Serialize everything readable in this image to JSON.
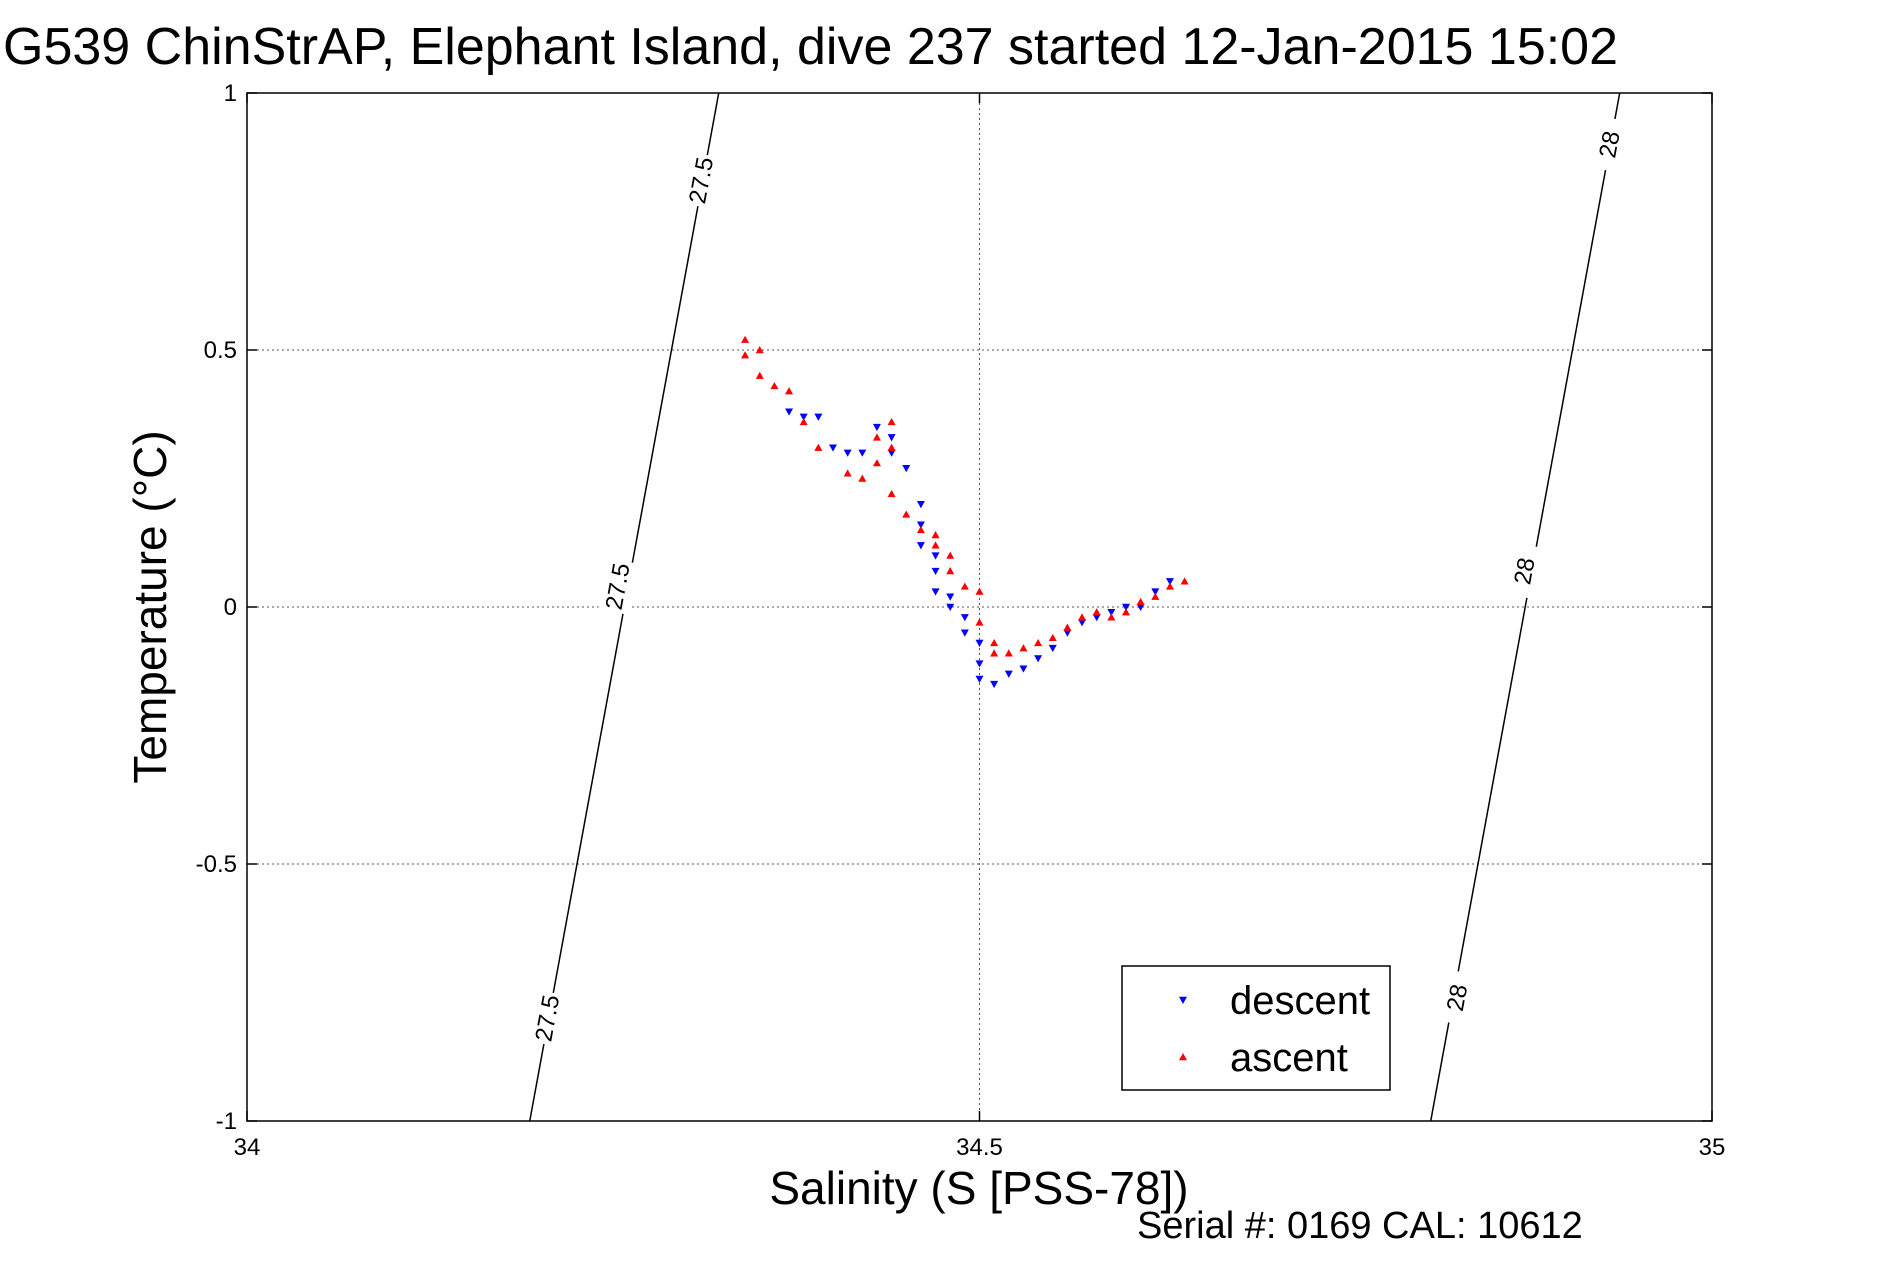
{
  "title": "G539 ChinStrAP, Elephant Island, dive 237 started 12-Jan-2015 15:02",
  "serial": "Serial #: 0169 CAL: 10612",
  "chart_data": {
    "type": "scatter",
    "title": "G539 ChinStrAP, Elephant Island, dive 237 started 12-Jan-2015 15:02",
    "xlabel": "Salinity (S [PSS-78])",
    "ylabel": "Temperature (°C)",
    "xlim": [
      34,
      35
    ],
    "ylim": [
      -1,
      1
    ],
    "xticks": [
      34,
      34.5,
      35
    ],
    "xtick_labels": [
      "34",
      "34.5",
      "35"
    ],
    "yticks": [
      -1,
      -0.5,
      0,
      0.5,
      1
    ],
    "ytick_labels": [
      "-1",
      "-0.5",
      "0",
      "0.5",
      "1"
    ],
    "grid": true,
    "legend": {
      "position": "bottom-right",
      "entries": [
        "descent",
        "ascent"
      ]
    },
    "colors": {
      "descent": "#0000ff",
      "ascent": "#ff0000"
    },
    "series": [
      {
        "name": "descent",
        "marker": "triangle-down",
        "points": [
          [
            34.37,
            0.38
          ],
          [
            34.38,
            0.37
          ],
          [
            34.39,
            0.37
          ],
          [
            34.4,
            0.31
          ],
          [
            34.41,
            0.3
          ],
          [
            34.42,
            0.3
          ],
          [
            34.43,
            0.35
          ],
          [
            34.44,
            0.33
          ],
          [
            34.44,
            0.3
          ],
          [
            34.45,
            0.27
          ],
          [
            34.46,
            0.2
          ],
          [
            34.46,
            0.16
          ],
          [
            34.46,
            0.12
          ],
          [
            34.47,
            0.1
          ],
          [
            34.47,
            0.07
          ],
          [
            34.47,
            0.03
          ],
          [
            34.48,
            0.02
          ],
          [
            34.48,
            0.0
          ],
          [
            34.49,
            -0.02
          ],
          [
            34.49,
            -0.05
          ],
          [
            34.5,
            -0.07
          ],
          [
            34.5,
            -0.11
          ],
          [
            34.5,
            -0.14
          ],
          [
            34.51,
            -0.15
          ],
          [
            34.52,
            -0.13
          ],
          [
            34.53,
            -0.12
          ],
          [
            34.54,
            -0.1
          ],
          [
            34.55,
            -0.08
          ],
          [
            34.56,
            -0.05
          ],
          [
            34.57,
            -0.03
          ],
          [
            34.58,
            -0.02
          ],
          [
            34.59,
            -0.01
          ],
          [
            34.6,
            0.0
          ],
          [
            34.61,
            0.0
          ],
          [
            34.62,
            0.03
          ],
          [
            34.63,
            0.05
          ]
        ]
      },
      {
        "name": "ascent",
        "marker": "triangle-up",
        "points": [
          [
            34.34,
            0.52
          ],
          [
            34.34,
            0.49
          ],
          [
            34.35,
            0.5
          ],
          [
            34.35,
            0.45
          ],
          [
            34.36,
            0.43
          ],
          [
            34.37,
            0.42
          ],
          [
            34.38,
            0.36
          ],
          [
            34.39,
            0.31
          ],
          [
            34.41,
            0.26
          ],
          [
            34.42,
            0.25
          ],
          [
            34.43,
            0.28
          ],
          [
            34.43,
            0.33
          ],
          [
            34.44,
            0.36
          ],
          [
            34.44,
            0.31
          ],
          [
            34.44,
            0.22
          ],
          [
            34.45,
            0.18
          ],
          [
            34.46,
            0.15
          ],
          [
            34.47,
            0.14
          ],
          [
            34.47,
            0.12
          ],
          [
            34.48,
            0.1
          ],
          [
            34.48,
            0.07
          ],
          [
            34.49,
            0.04
          ],
          [
            34.5,
            0.03
          ],
          [
            34.5,
            -0.03
          ],
          [
            34.51,
            -0.07
          ],
          [
            34.51,
            -0.09
          ],
          [
            34.52,
            -0.09
          ],
          [
            34.53,
            -0.08
          ],
          [
            34.54,
            -0.07
          ],
          [
            34.55,
            -0.06
          ],
          [
            34.56,
            -0.04
          ],
          [
            34.57,
            -0.02
          ],
          [
            34.58,
            -0.01
          ],
          [
            34.59,
            -0.02
          ],
          [
            34.6,
            -0.01
          ],
          [
            34.61,
            0.01
          ],
          [
            34.62,
            0.02
          ],
          [
            34.63,
            0.04
          ],
          [
            34.64,
            0.05
          ]
        ]
      }
    ],
    "isopycnals": [
      {
        "label": "27.5",
        "points": [
          [
            34.193,
            -1
          ],
          [
            34.322,
            1
          ]
        ],
        "label_positions": [
          [
            34.31,
            0.83
          ],
          [
            34.253,
            0.04
          ],
          [
            34.205,
            -0.8
          ]
        ]
      },
      {
        "label": "28",
        "points": [
          [
            34.808,
            -1
          ],
          [
            34.937,
            1
          ]
        ],
        "label_positions": [
          [
            34.93,
            0.9
          ],
          [
            34.872,
            0.07
          ],
          [
            34.826,
            -0.76
          ]
        ]
      }
    ]
  }
}
